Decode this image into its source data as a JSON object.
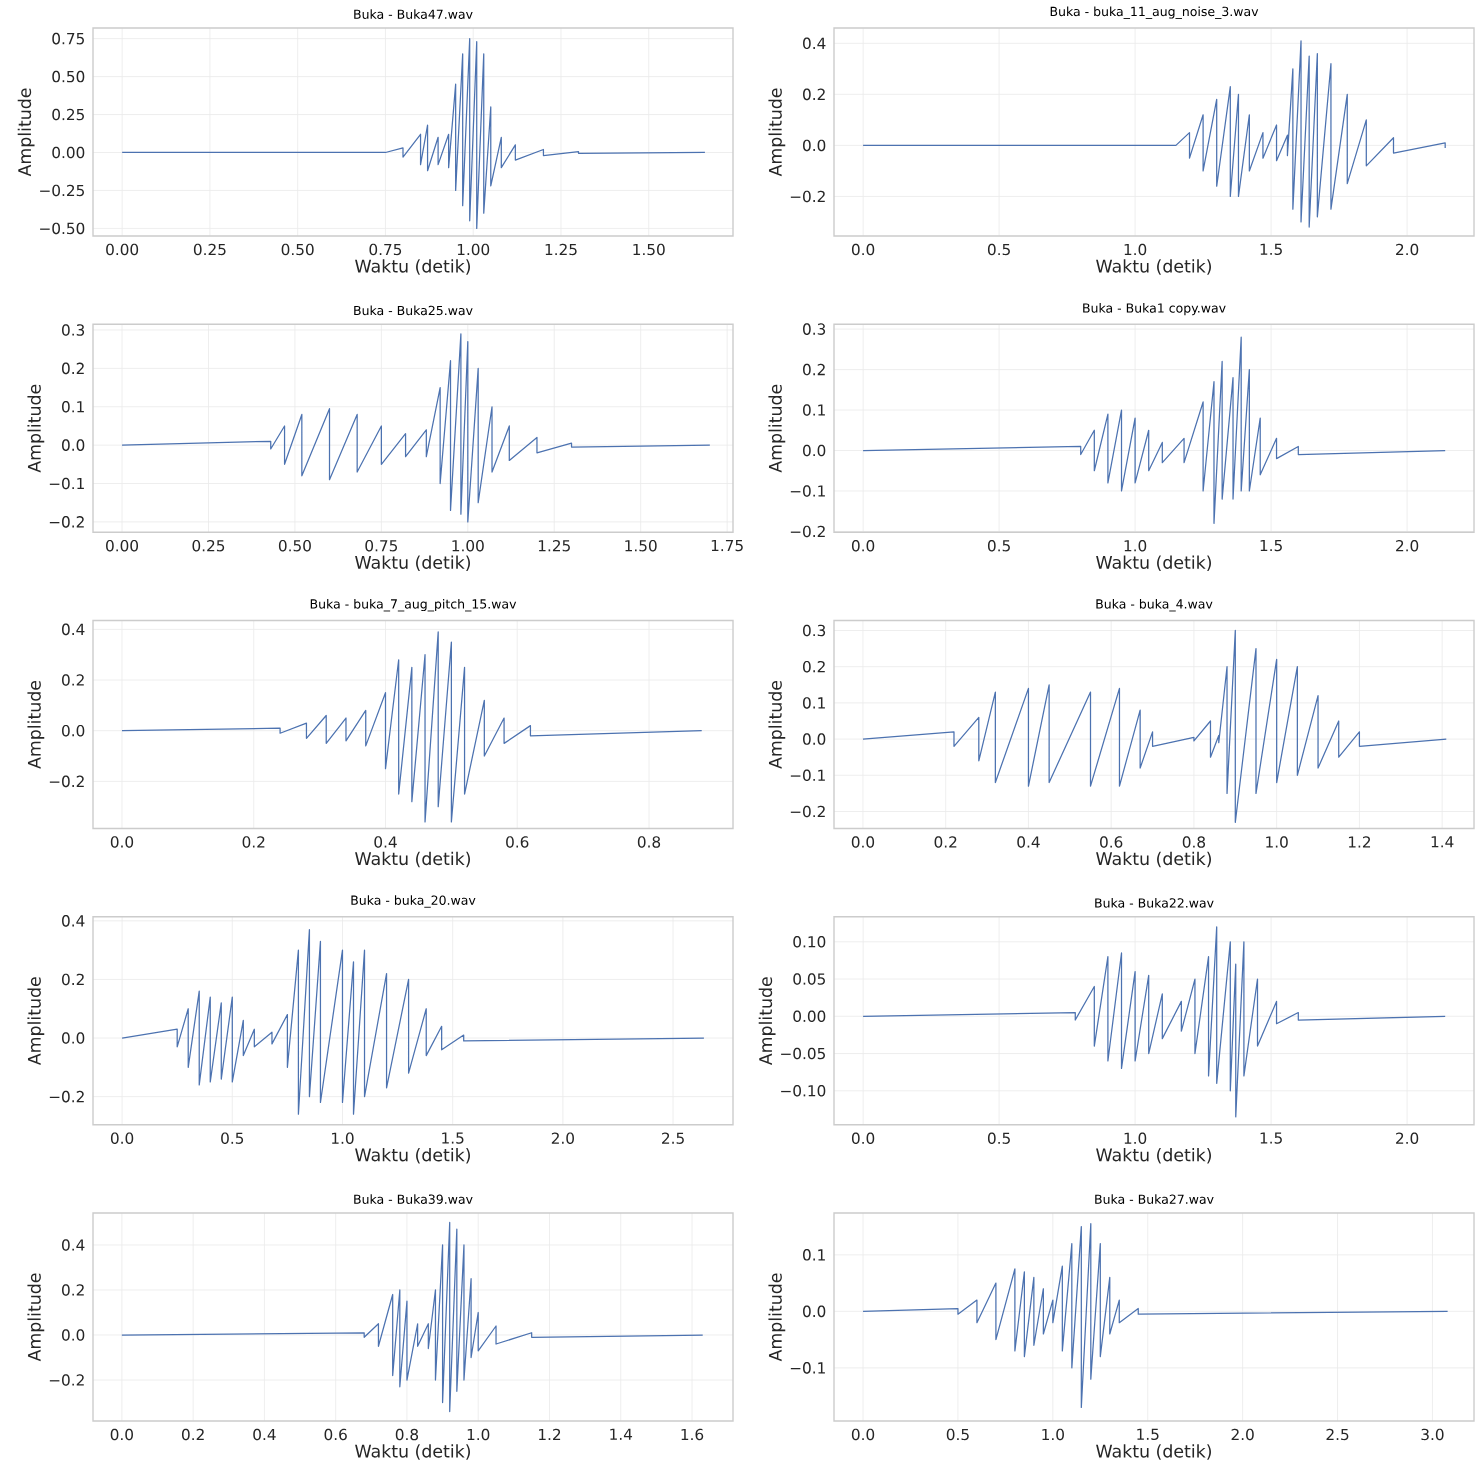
{
  "chart_data": [
    {
      "type": "line",
      "title": "Buka - Buka47.wav",
      "xlabel": "Waktu (detik)",
      "ylabel": "Amplitude",
      "grid": true,
      "color": "#4c72b0",
      "xlim": [
        -0.083,
        1.74
      ],
      "ylim": [
        -0.55,
        0.82
      ],
      "xticks": [
        {
          "value": 0,
          "label": "0.00"
        },
        {
          "value": 0.25,
          "label": "0.25"
        },
        {
          "value": 0.5,
          "label": "0.50"
        },
        {
          "value": 0.75,
          "label": "0.75"
        },
        {
          "value": 1.0,
          "label": "1.00"
        },
        {
          "value": 1.25,
          "label": "1.25"
        },
        {
          "value": 1.5,
          "label": "1.50"
        }
      ],
      "yticks": [
        {
          "value": -0.5,
          "label": "−0.50"
        },
        {
          "value": -0.25,
          "label": "−0.25"
        },
        {
          "value": 0,
          "label": "0.00"
        },
        {
          "value": 0.25,
          "label": "0.25"
        },
        {
          "value": 0.5,
          "label": "0.50"
        },
        {
          "value": 0.75,
          "label": "0.75"
        }
      ],
      "x": [
        0,
        0.75,
        0.8,
        0.8,
        0.85,
        0.85,
        0.87,
        0.87,
        0.9,
        0.9,
        0.93,
        0.93,
        0.95,
        0.95,
        0.97,
        0.97,
        0.99,
        0.99,
        1.01,
        1.01,
        1.03,
        1.03,
        1.05,
        1.05,
        1.08,
        1.08,
        1.12,
        1.12,
        1.2,
        1.2,
        1.3,
        1.3,
        1.66
      ],
      "values": [
        0,
        0,
        0.03,
        -0.03,
        0.12,
        -0.08,
        0.18,
        -0.12,
        0.1,
        -0.08,
        0.12,
        -0.1,
        0.45,
        -0.25,
        0.65,
        -0.35,
        0.75,
        -0.45,
        0.73,
        -0.5,
        0.65,
        -0.4,
        0.3,
        -0.22,
        0.1,
        -0.1,
        0.05,
        -0.05,
        0.02,
        -0.02,
        0.005,
        -0.005,
        0
      ]
    },
    {
      "type": "line",
      "title": "Buka - buka_11_aug_noise_3.wav",
      "xlabel": "Waktu (detik)",
      "ylabel": "Amplitude",
      "grid": true,
      "color": "#4c72b0",
      "xlim": [
        -0.107,
        2.246
      ],
      "ylim": [
        -0.355,
        0.46
      ],
      "xticks": [
        {
          "value": 0,
          "label": "0.0"
        },
        {
          "value": 0.5,
          "label": "0.5"
        },
        {
          "value": 1.0,
          "label": "1.0"
        },
        {
          "value": 1.5,
          "label": "1.5"
        },
        {
          "value": 2.0,
          "label": "2.0"
        }
      ],
      "yticks": [
        {
          "value": -0.2,
          "label": "−0.2"
        },
        {
          "value": 0,
          "label": "0.0"
        },
        {
          "value": 0.2,
          "label": "0.2"
        },
        {
          "value": 0.4,
          "label": "0.4"
        }
      ],
      "x": [
        0,
        1.15,
        1.2,
        1.2,
        1.25,
        1.25,
        1.3,
        1.3,
        1.35,
        1.35,
        1.38,
        1.38,
        1.42,
        1.42,
        1.47,
        1.47,
        1.52,
        1.52,
        1.56,
        1.56,
        1.58,
        1.58,
        1.61,
        1.61,
        1.64,
        1.64,
        1.67,
        1.67,
        1.72,
        1.72,
        1.78,
        1.78,
        1.85,
        1.85,
        1.95,
        1.95,
        2.14,
        2.14
      ],
      "values": [
        0,
        0,
        0.05,
        -0.05,
        0.12,
        -0.1,
        0.18,
        -0.16,
        0.23,
        -0.2,
        0.2,
        -0.2,
        0.12,
        -0.1,
        0.05,
        -0.05,
        0.08,
        -0.06,
        0.04,
        -0.04,
        0.3,
        -0.25,
        0.41,
        -0.3,
        0.35,
        -0.32,
        0.36,
        -0.28,
        0.32,
        -0.25,
        0.2,
        -0.15,
        0.1,
        -0.08,
        0.03,
        -0.03,
        0.01,
        -0.01
      ]
    },
    {
      "type": "line",
      "title": "Buka - Buka25.wav",
      "xlabel": "Waktu (detik)",
      "ylabel": "Amplitude",
      "grid": true,
      "color": "#4c72b0",
      "xlim": [
        -0.084,
        1.767
      ],
      "ylim": [
        -0.227,
        0.315
      ],
      "xticks": [
        {
          "value": 0,
          "label": "0.00"
        },
        {
          "value": 0.25,
          "label": "0.25"
        },
        {
          "value": 0.5,
          "label": "0.50"
        },
        {
          "value": 0.75,
          "label": "0.75"
        },
        {
          "value": 1.0,
          "label": "1.00"
        },
        {
          "value": 1.25,
          "label": "1.25"
        },
        {
          "value": 1.5,
          "label": "1.50"
        },
        {
          "value": 1.75,
          "label": "1.75"
        }
      ],
      "yticks": [
        {
          "value": -0.2,
          "label": "−0.2"
        },
        {
          "value": -0.1,
          "label": "−0.1"
        },
        {
          "value": 0,
          "label": "0.0"
        },
        {
          "value": 0.1,
          "label": "0.1"
        },
        {
          "value": 0.2,
          "label": "0.2"
        },
        {
          "value": 0.3,
          "label": "0.3"
        }
      ],
      "x": [
        0,
        0.43,
        0.43,
        0.47,
        0.47,
        0.52,
        0.52,
        0.6,
        0.6,
        0.68,
        0.68,
        0.75,
        0.75,
        0.82,
        0.82,
        0.88,
        0.88,
        0.92,
        0.92,
        0.95,
        0.95,
        0.98,
        0.98,
        1.0,
        1.0,
        1.03,
        1.03,
        1.07,
        1.07,
        1.12,
        1.12,
        1.2,
        1.2,
        1.3,
        1.3,
        1.7
      ],
      "values": [
        0,
        0.01,
        -0.01,
        0.05,
        -0.05,
        0.08,
        -0.08,
        0.095,
        -0.09,
        0.08,
        -0.07,
        0.05,
        -0.05,
        0.03,
        -0.03,
        0.04,
        -0.03,
        0.15,
        -0.1,
        0.22,
        -0.17,
        0.29,
        -0.18,
        0.27,
        -0.2,
        0.2,
        -0.15,
        0.1,
        -0.07,
        0.05,
        -0.04,
        0.02,
        -0.02,
        0.005,
        -0.005,
        0
      ]
    },
    {
      "type": "line",
      "title": "Buka - Buka1 copy.wav",
      "xlabel": "Waktu (detik)",
      "ylabel": "Amplitude",
      "grid": true,
      "color": "#4c72b0",
      "xlim": [
        -0.107,
        2.246
      ],
      "ylim": [
        -0.202,
        0.312
      ],
      "xticks": [
        {
          "value": 0,
          "label": "0.0"
        },
        {
          "value": 0.5,
          "label": "0.5"
        },
        {
          "value": 1.0,
          "label": "1.0"
        },
        {
          "value": 1.5,
          "label": "1.5"
        },
        {
          "value": 2.0,
          "label": "2.0"
        }
      ],
      "yticks": [
        {
          "value": -0.2,
          "label": "−0.2"
        },
        {
          "value": -0.1,
          "label": "−0.1"
        },
        {
          "value": 0,
          "label": "0.0"
        },
        {
          "value": 0.1,
          "label": "0.1"
        },
        {
          "value": 0.2,
          "label": "0.2"
        },
        {
          "value": 0.3,
          "label": "0.3"
        }
      ],
      "x": [
        0,
        0.8,
        0.8,
        0.85,
        0.85,
        0.9,
        0.9,
        0.95,
        0.95,
        1.0,
        1.0,
        1.05,
        1.05,
        1.1,
        1.1,
        1.18,
        1.18,
        1.25,
        1.25,
        1.29,
        1.29,
        1.32,
        1.32,
        1.36,
        1.36,
        1.39,
        1.39,
        1.42,
        1.42,
        1.46,
        1.46,
        1.52,
        1.52,
        1.6,
        1.6,
        2.14
      ],
      "values": [
        0,
        0.01,
        -0.01,
        0.05,
        -0.05,
        0.09,
        -0.08,
        0.1,
        -0.1,
        0.08,
        -0.08,
        0.05,
        -0.05,
        0.02,
        -0.03,
        0.03,
        -0.03,
        0.12,
        -0.1,
        0.17,
        -0.18,
        0.22,
        -0.12,
        0.18,
        -0.12,
        0.28,
        -0.1,
        0.2,
        -0.1,
        0.08,
        -0.06,
        0.03,
        -0.02,
        0.01,
        -0.01,
        0
      ]
    },
    {
      "type": "line",
      "title": "Buka - buka_7_aug_pitch_15.wav",
      "xlabel": "Waktu (detik)",
      "ylabel": "Amplitude",
      "grid": true,
      "color": "#4c72b0",
      "xlim": [
        -0.044,
        0.9275
      ],
      "ylim": [
        -0.386,
        0.435
      ],
      "xticks": [
        {
          "value": 0,
          "label": "0.0"
        },
        {
          "value": 0.2,
          "label": "0.2"
        },
        {
          "value": 0.4,
          "label": "0.4"
        },
        {
          "value": 0.6,
          "label": "0.6"
        },
        {
          "value": 0.8,
          "label": "0.8"
        }
      ],
      "yticks": [
        {
          "value": -0.2,
          "label": "−0.2"
        },
        {
          "value": 0,
          "label": "0.0"
        },
        {
          "value": 0.2,
          "label": "0.2"
        },
        {
          "value": 0.4,
          "label": "0.4"
        }
      ],
      "x": [
        0,
        0.24,
        0.24,
        0.28,
        0.28,
        0.31,
        0.31,
        0.34,
        0.34,
        0.37,
        0.37,
        0.4,
        0.4,
        0.42,
        0.42,
        0.44,
        0.44,
        0.46,
        0.46,
        0.48,
        0.48,
        0.5,
        0.5,
        0.52,
        0.52,
        0.55,
        0.55,
        0.58,
        0.58,
        0.62,
        0.62,
        0.88
      ],
      "values": [
        0,
        0.01,
        -0.01,
        0.03,
        -0.03,
        0.06,
        -0.05,
        0.05,
        -0.04,
        0.08,
        -0.06,
        0.15,
        -0.15,
        0.28,
        -0.25,
        0.25,
        -0.28,
        0.3,
        -0.36,
        0.39,
        -0.3,
        0.35,
        -0.36,
        0.25,
        -0.25,
        0.12,
        -0.1,
        0.05,
        -0.05,
        0.02,
        -0.02,
        0
      ]
    },
    {
      "type": "line",
      "title": "Buka - buka_4.wav",
      "xlabel": "Waktu (detik)",
      "ylabel": "Amplitude",
      "grid": true,
      "color": "#4c72b0",
      "xlim": [
        -0.07,
        1.477
      ],
      "ylim": [
        -0.247,
        0.3276
      ],
      "xticks": [
        {
          "value": 0,
          "label": "0.0"
        },
        {
          "value": 0.2,
          "label": "0.2"
        },
        {
          "value": 0.4,
          "label": "0.4"
        },
        {
          "value": 0.6,
          "label": "0.6"
        },
        {
          "value": 0.8,
          "label": "0.8"
        },
        {
          "value": 1.0,
          "label": "1.0"
        },
        {
          "value": 1.2,
          "label": "1.2"
        },
        {
          "value": 1.4,
          "label": "1.4"
        }
      ],
      "yticks": [
        {
          "value": -0.2,
          "label": "−0.2"
        },
        {
          "value": -0.1,
          "label": "−0.1"
        },
        {
          "value": 0,
          "label": "0.0"
        },
        {
          "value": 0.1,
          "label": "0.1"
        },
        {
          "value": 0.2,
          "label": "0.2"
        },
        {
          "value": 0.3,
          "label": "0.3"
        }
      ],
      "x": [
        0,
        0.22,
        0.22,
        0.28,
        0.28,
        0.32,
        0.32,
        0.4,
        0.4,
        0.45,
        0.45,
        0.55,
        0.55,
        0.62,
        0.62,
        0.67,
        0.67,
        0.7,
        0.7,
        0.8,
        0.8,
        0.84,
        0.84,
        0.86,
        0.86,
        0.88,
        0.88,
        0.9,
        0.9,
        0.95,
        0.95,
        1.0,
        1.0,
        1.05,
        1.05,
        1.1,
        1.1,
        1.15,
        1.15,
        1.2,
        1.2,
        1.41
      ],
      "values": [
        0,
        0.02,
        -0.02,
        0.06,
        -0.06,
        0.13,
        -0.12,
        0.14,
        -0.13,
        0.15,
        -0.12,
        0.13,
        -0.13,
        0.14,
        -0.13,
        0.08,
        -0.08,
        0.02,
        -0.02,
        0.005,
        -0.005,
        0.05,
        -0.05,
        0.01,
        -0.01,
        0.2,
        -0.15,
        0.3,
        -0.23,
        0.25,
        -0.15,
        0.22,
        -0.12,
        0.2,
        -0.1,
        0.12,
        -0.08,
        0.05,
        -0.05,
        0.02,
        -0.02,
        0
      ]
    },
    {
      "type": "line",
      "title": "Buka - buka_20.wav",
      "xlabel": "Waktu (detik)",
      "ylabel": "Amplitude",
      "grid": true,
      "color": "#4c72b0",
      "xlim": [
        -0.132,
        2.772
      ],
      "ylim": [
        -0.296,
        0.414
      ],
      "xticks": [
        {
          "value": 0,
          "label": "0.0"
        },
        {
          "value": 0.5,
          "label": "0.5"
        },
        {
          "value": 1.0,
          "label": "1.0"
        },
        {
          "value": 1.5,
          "label": "1.5"
        },
        {
          "value": 2.0,
          "label": "2.0"
        },
        {
          "value": 2.5,
          "label": "2.5"
        }
      ],
      "yticks": [
        {
          "value": -0.2,
          "label": "−0.2"
        },
        {
          "value": 0,
          "label": "0.0"
        },
        {
          "value": 0.2,
          "label": "0.2"
        },
        {
          "value": 0.4,
          "label": "0.4"
        }
      ],
      "x": [
        0,
        0.25,
        0.25,
        0.3,
        0.3,
        0.35,
        0.35,
        0.4,
        0.4,
        0.45,
        0.45,
        0.5,
        0.5,
        0.55,
        0.55,
        0.6,
        0.6,
        0.68,
        0.68,
        0.75,
        0.75,
        0.8,
        0.8,
        0.85,
        0.85,
        0.9,
        0.9,
        1.0,
        1.0,
        1.05,
        1.05,
        1.1,
        1.1,
        1.2,
        1.2,
        1.3,
        1.3,
        1.38,
        1.38,
        1.45,
        1.45,
        1.55,
        1.55,
        2.64
      ],
      "values": [
        0,
        0.03,
        -0.03,
        0.1,
        -0.1,
        0.16,
        -0.16,
        0.14,
        -0.15,
        0.12,
        -0.14,
        0.14,
        -0.15,
        0.06,
        -0.06,
        0.03,
        -0.03,
        0.02,
        -0.02,
        0.08,
        -0.1,
        0.3,
        -0.26,
        0.37,
        -0.2,
        0.33,
        -0.22,
        0.3,
        -0.22,
        0.26,
        -0.26,
        0.3,
        -0.2,
        0.22,
        -0.17,
        0.2,
        -0.12,
        0.1,
        -0.06,
        0.04,
        -0.04,
        0.01,
        -0.01,
        0
      ]
    },
    {
      "type": "line",
      "title": "Buka - Buka22.wav",
      "xlabel": "Waktu (detik)",
      "ylabel": "Amplitude",
      "grid": true,
      "color": "#4c72b0",
      "xlim": [
        -0.107,
        2.246
      ],
      "ylim": [
        -0.1456,
        0.1336
      ],
      "xticks": [
        {
          "value": 0,
          "label": "0.0"
        },
        {
          "value": 0.5,
          "label": "0.5"
        },
        {
          "value": 1.0,
          "label": "1.0"
        },
        {
          "value": 1.5,
          "label": "1.5"
        },
        {
          "value": 2.0,
          "label": "2.0"
        }
      ],
      "yticks": [
        {
          "value": -0.1,
          "label": "−0.10"
        },
        {
          "value": -0.05,
          "label": "−0.05"
        },
        {
          "value": 0,
          "label": "0.00"
        },
        {
          "value": 0.05,
          "label": "0.05"
        },
        {
          "value": 0.1,
          "label": "0.10"
        }
      ],
      "x": [
        0,
        0.78,
        0.78,
        0.85,
        0.85,
        0.9,
        0.9,
        0.95,
        0.95,
        1.0,
        1.0,
        1.05,
        1.05,
        1.1,
        1.1,
        1.17,
        1.17,
        1.22,
        1.22,
        1.27,
        1.27,
        1.3,
        1.3,
        1.35,
        1.35,
        1.37,
        1.37,
        1.4,
        1.4,
        1.45,
        1.45,
        1.52,
        1.52,
        1.6,
        1.6,
        2.14
      ],
      "values": [
        0,
        0.005,
        -0.005,
        0.04,
        -0.04,
        0.08,
        -0.06,
        0.085,
        -0.07,
        0.06,
        -0.06,
        0.055,
        -0.05,
        0.03,
        -0.03,
        0.02,
        -0.02,
        0.05,
        -0.05,
        0.08,
        -0.08,
        0.12,
        -0.09,
        0.1,
        -0.1,
        0.07,
        -0.135,
        0.1,
        -0.08,
        0.05,
        -0.04,
        0.02,
        -0.01,
        0.005,
        -0.005,
        0
      ]
    },
    {
      "type": "line",
      "title": "Buka - Buka39.wav",
      "xlabel": "Waktu (detik)",
      "ylabel": "Amplitude",
      "grid": true,
      "color": "#4c72b0",
      "xlim": [
        -0.081,
        1.715
      ],
      "ylim": [
        -0.382,
        0.542
      ],
      "xticks": [
        {
          "value": 0,
          "label": "0.0"
        },
        {
          "value": 0.2,
          "label": "0.2"
        },
        {
          "value": 0.4,
          "label": "0.4"
        },
        {
          "value": 0.6,
          "label": "0.6"
        },
        {
          "value": 0.8,
          "label": "0.8"
        },
        {
          "value": 1.0,
          "label": "1.0"
        },
        {
          "value": 1.2,
          "label": "1.2"
        },
        {
          "value": 1.4,
          "label": "1.4"
        },
        {
          "value": 1.6,
          "label": "1.6"
        }
      ],
      "yticks": [
        {
          "value": -0.2,
          "label": "−0.2"
        },
        {
          "value": 0,
          "label": "0.0"
        },
        {
          "value": 0.2,
          "label": "0.2"
        },
        {
          "value": 0.4,
          "label": "0.4"
        }
      ],
      "x": [
        0,
        0.68,
        0.68,
        0.72,
        0.72,
        0.76,
        0.76,
        0.78,
        0.78,
        0.8,
        0.8,
        0.83,
        0.83,
        0.86,
        0.86,
        0.88,
        0.88,
        0.9,
        0.9,
        0.92,
        0.92,
        0.94,
        0.94,
        0.96,
        0.96,
        0.98,
        0.98,
        1.0,
        1.0,
        1.05,
        1.05,
        1.15,
        1.15,
        1.63
      ],
      "values": [
        0,
        0.01,
        -0.01,
        0.05,
        -0.05,
        0.18,
        -0.18,
        0.2,
        -0.23,
        0.15,
        -0.2,
        0.05,
        -0.05,
        0.05,
        -0.06,
        0.2,
        -0.2,
        0.4,
        -0.3,
        0.5,
        -0.34,
        0.47,
        -0.25,
        0.4,
        -0.2,
        0.25,
        -0.1,
        0.1,
        -0.07,
        0.04,
        -0.04,
        0.01,
        -0.01,
        0
      ]
    },
    {
      "type": "line",
      "title": "Buka - Buka27.wav",
      "xlabel": "Waktu (detik)",
      "ylabel": "Amplitude",
      "grid": true,
      "color": "#4c72b0",
      "xlim": [
        -0.153,
        3.219
      ],
      "ylim": [
        -0.194,
        0.174
      ],
      "xticks": [
        {
          "value": 0,
          "label": "0.0"
        },
        {
          "value": 0.5,
          "label": "0.5"
        },
        {
          "value": 1.0,
          "label": "1.0"
        },
        {
          "value": 1.5,
          "label": "1.5"
        },
        {
          "value": 2.0,
          "label": "2.0"
        },
        {
          "value": 2.5,
          "label": "2.5"
        },
        {
          "value": 3.0,
          "label": "3.0"
        }
      ],
      "yticks": [
        {
          "value": -0.1,
          "label": "−0.1"
        },
        {
          "value": 0,
          "label": "0.0"
        },
        {
          "value": 0.1,
          "label": "0.1"
        }
      ],
      "x": [
        0,
        0.5,
        0.5,
        0.6,
        0.6,
        0.7,
        0.7,
        0.8,
        0.8,
        0.85,
        0.85,
        0.9,
        0.9,
        0.95,
        0.95,
        1.0,
        1.0,
        1.05,
        1.05,
        1.1,
        1.1,
        1.15,
        1.15,
        1.2,
        1.2,
        1.25,
        1.25,
        1.3,
        1.3,
        1.35,
        1.35,
        1.45,
        1.45,
        3.08
      ],
      "values": [
        0,
        0.005,
        -0.005,
        0.02,
        -0.02,
        0.05,
        -0.05,
        0.075,
        -0.07,
        0.07,
        -0.08,
        0.06,
        -0.06,
        0.04,
        -0.04,
        0.02,
        -0.02,
        0.08,
        -0.07,
        0.12,
        -0.1,
        0.15,
        -0.17,
        0.155,
        -0.12,
        0.12,
        -0.08,
        0.06,
        -0.04,
        0.02,
        -0.02,
        0.005,
        -0.005,
        0
      ]
    }
  ]
}
